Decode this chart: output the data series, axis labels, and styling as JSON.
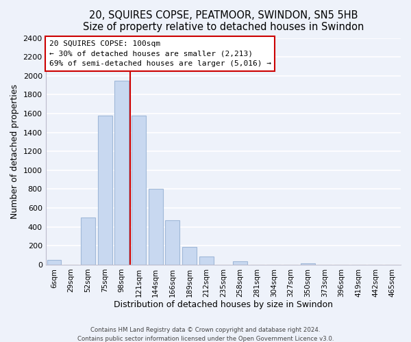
{
  "title": "20, SQUIRES COPSE, PEATMOOR, SWINDON, SN5 5HB",
  "subtitle": "Size of property relative to detached houses in Swindon",
  "xlabel": "Distribution of detached houses by size in Swindon",
  "ylabel": "Number of detached properties",
  "bar_color": "#c8d8f0",
  "bar_edge_color": "#a0b8d8",
  "categories": [
    "6sqm",
    "29sqm",
    "52sqm",
    "75sqm",
    "98sqm",
    "121sqm",
    "144sqm",
    "166sqm",
    "189sqm",
    "212sqm",
    "235sqm",
    "258sqm",
    "281sqm",
    "304sqm",
    "327sqm",
    "350sqm",
    "373sqm",
    "396sqm",
    "419sqm",
    "442sqm",
    "465sqm"
  ],
  "values": [
    50,
    0,
    500,
    1580,
    1950,
    1580,
    800,
    470,
    185,
    90,
    0,
    35,
    0,
    0,
    0,
    15,
    0,
    0,
    0,
    0,
    0
  ],
  "ylim": [
    0,
    2400
  ],
  "yticks": [
    0,
    200,
    400,
    600,
    800,
    1000,
    1200,
    1400,
    1600,
    1800,
    2000,
    2200,
    2400
  ],
  "vline_index": 4,
  "marker_label": "20 SQUIRES COPSE: 100sqm",
  "annotation_line1": "← 30% of detached houses are smaller (2,213)",
  "annotation_line2": "69% of semi-detached houses are larger (5,016) →",
  "vline_color": "#cc0000",
  "footer1": "Contains HM Land Registry data © Crown copyright and database right 2024.",
  "footer2": "Contains public sector information licensed under the Open Government Licence v3.0.",
  "background_color": "#eef2fa",
  "grid_color": "#ffffff"
}
